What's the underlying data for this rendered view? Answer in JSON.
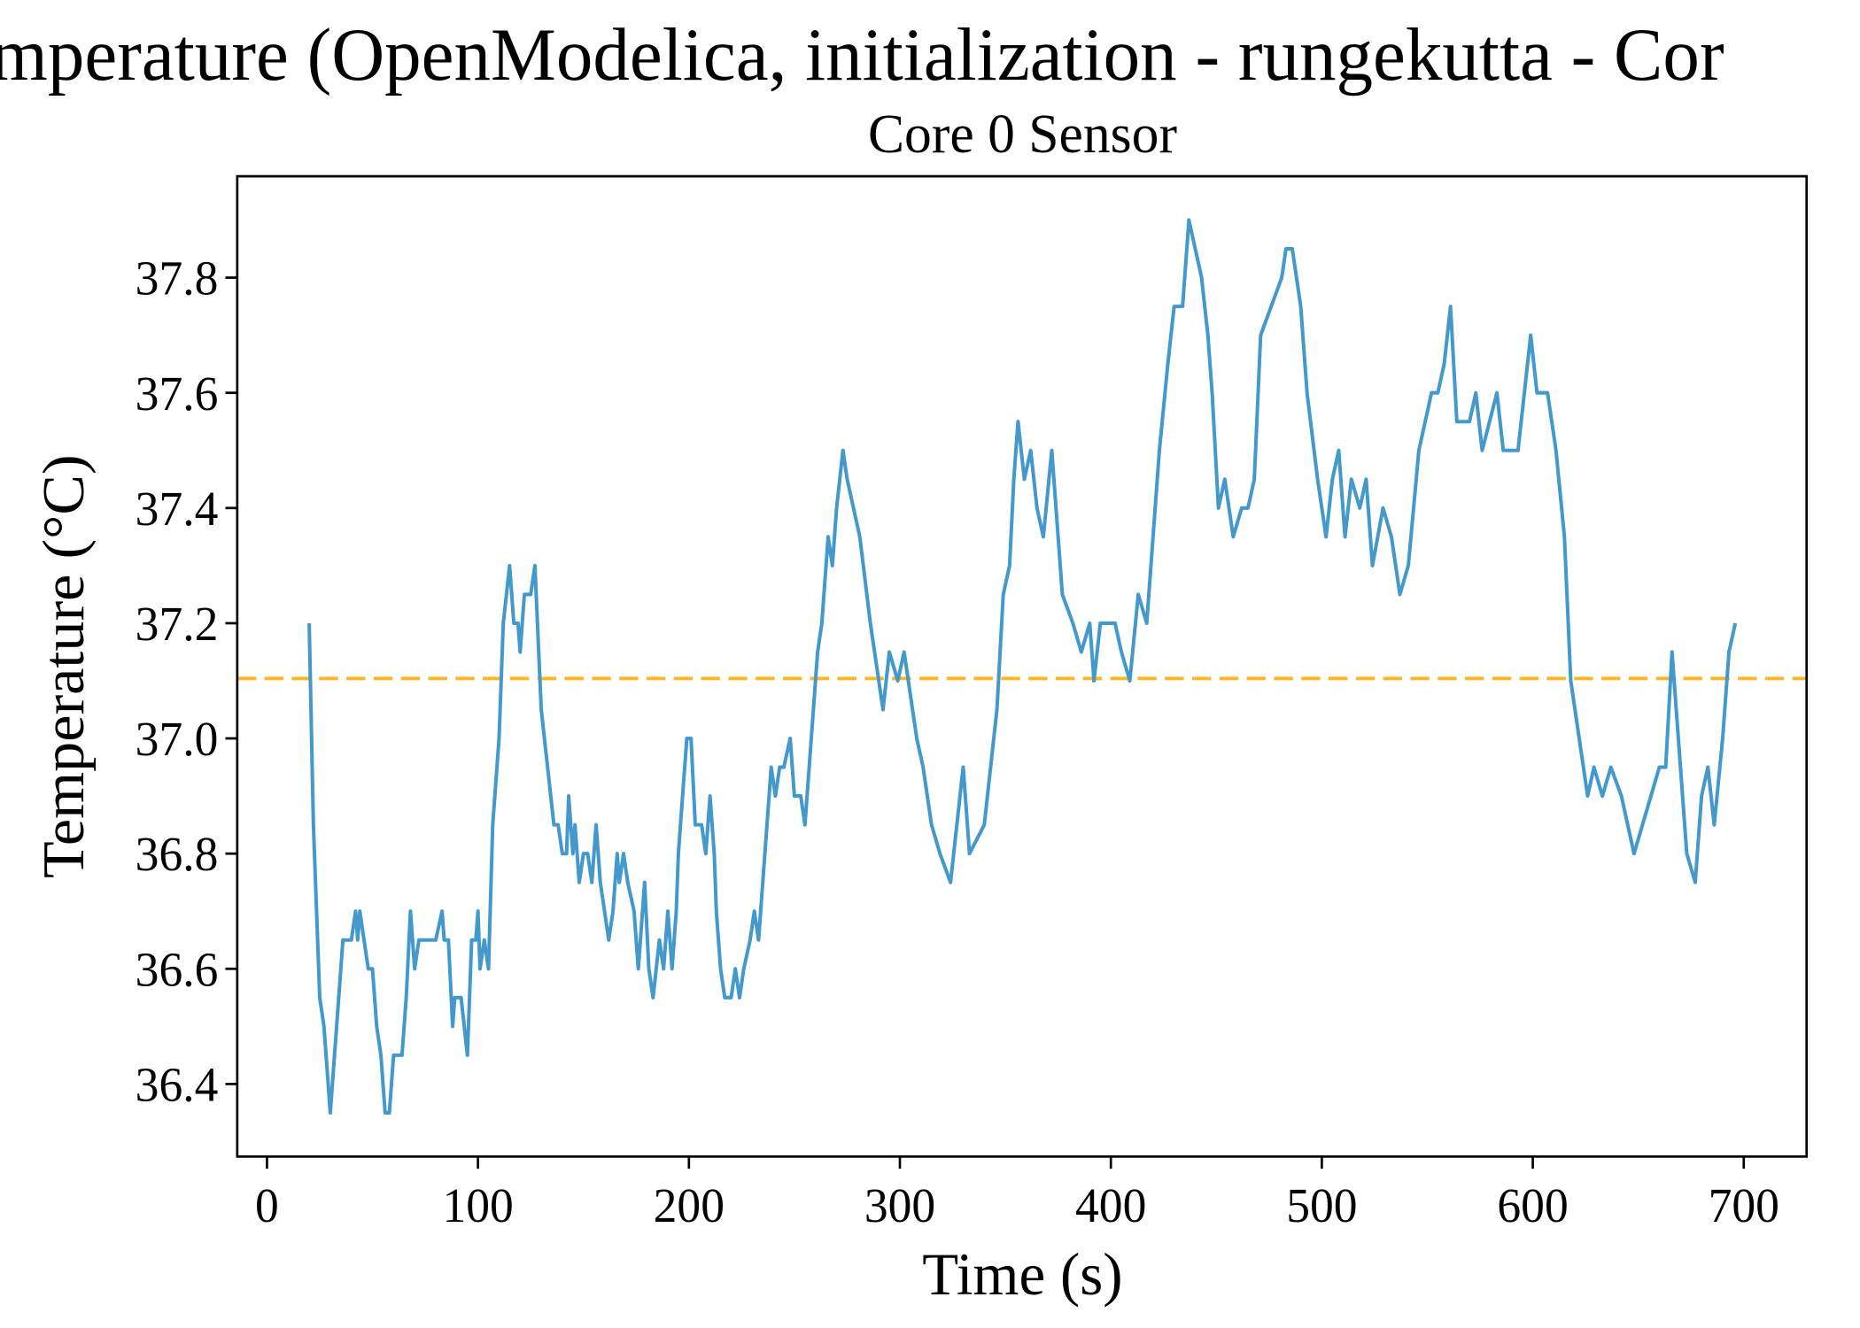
{
  "chart_data": {
    "type": "line",
    "title": "mperature (OpenModelica, initialization - rungekutta - Cor",
    "subtitle": "Core 0 Sensor",
    "x_label": "Time (s)",
    "y_label": "Temperature (°C)",
    "xlim": [
      -14.1,
      729.8
    ],
    "ylim": [
      36.274,
      37.976
    ],
    "xticks": [
      0,
      100,
      200,
      300,
      400,
      500,
      600,
      700
    ],
    "yticks": [
      36.4,
      36.6,
      36.8,
      {
        "value": 37,
        "label": "37.0"
      },
      37.2,
      37.4,
      37.6,
      37.8
    ],
    "hline": 37.104,
    "hline_color": "#fbb829",
    "x": [
      20,
      22,
      25,
      27,
      30,
      31,
      33,
      36,
      40,
      42,
      43,
      44,
      46,
      48,
      50,
      52,
      54,
      56,
      58,
      60,
      64,
      66,
      68,
      70,
      72,
      80,
      83,
      84,
      86,
      88,
      89,
      92,
      95,
      97,
      99,
      100,
      101,
      103,
      105,
      107,
      110,
      112,
      115,
      117,
      119,
      120,
      122,
      125,
      127,
      130,
      133,
      136,
      138,
      140,
      142,
      143,
      145,
      146,
      148,
      150,
      152,
      154,
      156,
      158,
      160,
      162,
      164,
      166,
      167,
      169,
      171,
      174,
      176,
      179,
      181,
      183,
      186,
      188,
      190,
      192,
      194,
      195,
      197,
      199,
      201,
      203,
      206,
      208,
      210,
      212,
      213,
      215,
      217,
      220,
      222,
      224,
      226,
      229,
      231,
      233,
      235,
      237,
      239,
      241,
      243,
      245,
      248,
      250,
      253,
      255,
      257,
      259,
      261,
      263,
      266,
      268,
      270,
      273,
      275,
      278,
      281,
      286,
      292,
      295,
      299,
      302,
      308,
      311,
      315,
      319,
      324,
      327,
      330,
      333,
      340,
      343,
      346,
      349,
      352,
      354,
      356,
      359,
      362,
      365,
      368,
      372,
      377,
      382,
      386,
      390,
      392,
      395,
      402,
      405,
      409,
      413,
      417,
      420,
      423,
      427,
      430,
      434,
      437,
      440,
      443,
      446,
      448,
      451,
      454,
      458,
      462,
      465,
      468,
      471,
      476,
      481,
      483,
      486,
      490,
      493,
      498,
      502,
      505,
      508,
      511,
      514,
      518,
      521,
      524,
      529,
      533,
      537,
      541,
      546,
      552,
      555,
      558,
      561,
      564,
      570,
      573,
      576,
      583,
      586,
      593,
      599,
      602,
      607,
      611,
      615,
      618,
      622,
      626,
      629,
      633,
      637,
      642,
      645,
      648,
      652,
      656,
      660,
      663,
      666,
      670,
      673,
      677,
      680,
      683,
      686,
      690,
      693,
      696
    ],
    "series": [
      {
        "name": "Core 0 Sensor",
        "color": "#4499cc",
        "values": [
          37.2,
          36.85,
          36.55,
          36.5,
          36.35,
          36.4,
          36.5,
          36.65,
          36.65,
          36.7,
          36.65,
          36.7,
          36.65,
          36.6,
          36.6,
          36.5,
          36.45,
          36.35,
          36.35,
          36.45,
          36.45,
          36.55,
          36.7,
          36.6,
          36.65,
          36.65,
          36.7,
          36.65,
          36.65,
          36.5,
          36.55,
          36.55,
          36.45,
          36.65,
          36.65,
          36.7,
          36.6,
          36.65,
          36.6,
          36.85,
          37.0,
          37.2,
          37.3,
          37.2,
          37.2,
          37.15,
          37.25,
          37.25,
          37.3,
          37.05,
          36.95,
          36.85,
          36.85,
          36.8,
          36.8,
          36.9,
          36.8,
          36.85,
          36.75,
          36.8,
          36.8,
          36.75,
          36.85,
          36.75,
          36.7,
          36.65,
          36.7,
          36.8,
          36.75,
          36.8,
          36.75,
          36.7,
          36.6,
          36.75,
          36.6,
          36.55,
          36.65,
          36.6,
          36.7,
          36.6,
          36.7,
          36.8,
          36.9,
          37.0,
          37.0,
          36.85,
          36.85,
          36.8,
          36.9,
          36.8,
          36.7,
          36.6,
          36.55,
          36.55,
          36.6,
          36.55,
          36.6,
          36.65,
          36.7,
          36.65,
          36.75,
          36.85,
          36.95,
          36.9,
          36.95,
          36.95,
          37.0,
          36.9,
          36.9,
          36.85,
          36.95,
          37.05,
          37.15,
          37.2,
          37.35,
          37.3,
          37.4,
          37.5,
          37.45,
          37.4,
          37.35,
          37.2,
          37.05,
          37.15,
          37.1,
          37.15,
          37.0,
          36.95,
          36.85,
          36.8,
          36.75,
          36.85,
          36.95,
          36.8,
          36.85,
          36.95,
          37.05,
          37.25,
          37.3,
          37.45,
          37.55,
          37.45,
          37.5,
          37.4,
          37.35,
          37.5,
          37.25,
          37.2,
          37.15,
          37.2,
          37.1,
          37.2,
          37.2,
          37.15,
          37.1,
          37.25,
          37.2,
          37.35,
          37.5,
          37.65,
          37.75,
          37.75,
          37.9,
          37.85,
          37.8,
          37.7,
          37.6,
          37.4,
          37.45,
          37.35,
          37.4,
          37.4,
          37.45,
          37.7,
          37.75,
          37.8,
          37.85,
          37.85,
          37.75,
          37.6,
          37.45,
          37.35,
          37.45,
          37.5,
          37.35,
          37.45,
          37.4,
          37.45,
          37.3,
          37.4,
          37.35,
          37.25,
          37.3,
          37.5,
          37.6,
          37.6,
          37.65,
          37.75,
          37.55,
          37.55,
          37.6,
          37.5,
          37.6,
          37.5,
          37.5,
          37.7,
          37.6,
          37.6,
          37.5,
          37.35,
          37.1,
          37.0,
          36.9,
          36.95,
          36.9,
          36.95,
          36.9,
          36.85,
          36.8,
          36.85,
          36.9,
          36.95,
          36.95,
          37.15,
          36.95,
          36.8,
          36.75,
          36.9,
          36.95,
          36.85,
          37.0,
          37.15,
          37.2
        ]
      }
    ]
  }
}
